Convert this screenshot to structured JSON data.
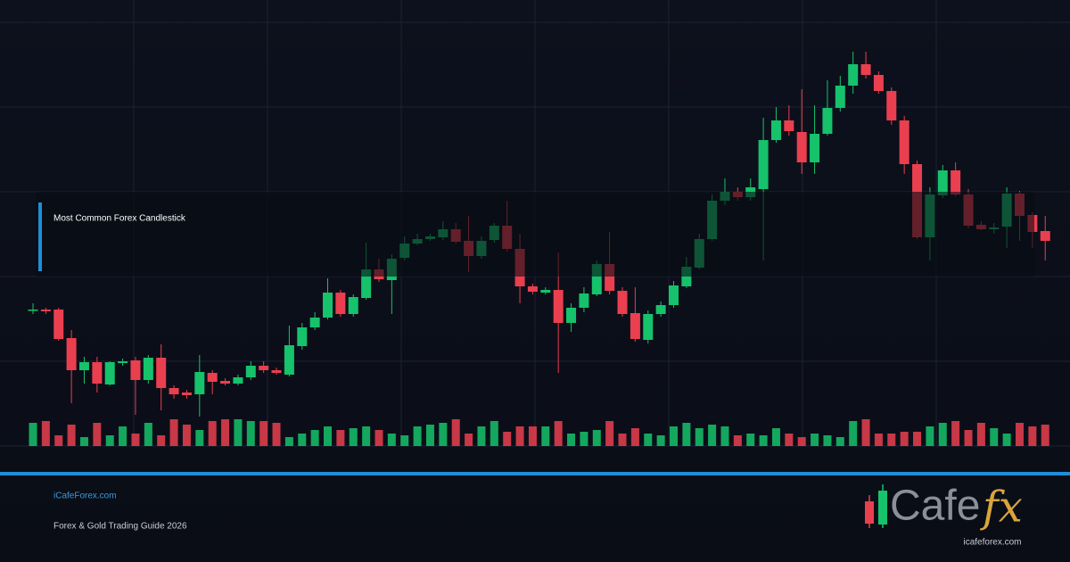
{
  "chart_data": {
    "type": "candlestick",
    "title": "Most Common Forex Candlestick",
    "ylim": [
      0,
      500
    ],
    "grid": true,
    "up_color": "#16c26b",
    "down_color": "#ea3f4f",
    "open": [
      153,
      153,
      153,
      121,
      85,
      94,
      69,
      93,
      96,
      74,
      99,
      65,
      60,
      58,
      82,
      73,
      70,
      77,
      90,
      85,
      80,
      112,
      133,
      144,
      172,
      148,
      166,
      198,
      186,
      211,
      227,
      232,
      234,
      243,
      230,
      213,
      231,
      247,
      221,
      179,
      172,
      175,
      138,
      155,
      170,
      204,
      174,
      149,
      119,
      148,
      158,
      179,
      200,
      232,
      275,
      285,
      279,
      288,
      343,
      365,
      352,
      318,
      350,
      379,
      404,
      428,
      416,
      398,
      365,
      316,
      234,
      281,
      309,
      282,
      248,
      243,
      246,
      283,
      259,
      241
    ],
    "high": [
      160,
      155,
      155,
      130,
      100,
      100,
      95,
      98,
      100,
      102,
      114,
      68,
      63,
      102,
      85,
      76,
      80,
      95,
      95,
      88,
      135,
      138,
      150,
      188,
      175,
      170,
      228,
      210,
      215,
      235,
      238,
      238,
      252,
      250,
      258,
      235,
      250,
      275,
      238,
      182,
      178,
      217,
      160,
      178,
      208,
      240,
      178,
      178,
      152,
      162,
      185,
      212,
      238,
      282,
      300,
      290,
      300,
      368,
      380,
      382,
      400,
      382,
      410,
      415,
      442,
      442,
      420,
      402,
      370,
      320,
      290,
      315,
      318,
      288,
      252,
      250,
      290,
      286,
      262,
      258
    ],
    "low": [
      148,
      148,
      118,
      48,
      70,
      60,
      68,
      90,
      35,
      70,
      40,
      53,
      53,
      33,
      58,
      68,
      68,
      74,
      82,
      80,
      78,
      108,
      130,
      142,
      145,
      145,
      164,
      184,
      148,
      208,
      225,
      230,
      231,
      227,
      195,
      210,
      228,
      218,
      160,
      170,
      170,
      82,
      128,
      150,
      168,
      170,
      145,
      117,
      115,
      145,
      155,
      177,
      198,
      230,
      270,
      275,
      275,
      208,
      340,
      348,
      305,
      305,
      348,
      375,
      395,
      412,
      395,
      360,
      305,
      232,
      208,
      278,
      280,
      244,
      242,
      238,
      222,
      230,
      222,
      208
    ],
    "close": [
      153,
      151,
      120,
      85,
      94,
      70,
      94,
      95,
      74,
      99,
      65,
      58,
      57,
      83,
      72,
      70,
      77,
      90,
      85,
      82,
      113,
      133,
      144,
      172,
      148,
      167,
      198,
      187,
      210,
      227,
      232,
      235,
      243,
      229,
      213,
      230,
      247,
      221,
      179,
      173,
      175,
      138,
      155,
      171,
      204,
      174,
      148,
      120,
      148,
      158,
      180,
      201,
      232,
      275,
      285,
      279,
      290,
      343,
      365,
      353,
      318,
      350,
      379,
      404,
      428,
      416,
      398,
      365,
      316,
      234,
      282,
      309,
      282,
      247,
      243,
      245,
      283,
      258,
      240,
      230
    ],
    "volume": [
      26,
      28,
      12,
      24,
      10,
      26,
      12,
      22,
      14,
      26,
      12,
      30,
      24,
      18,
      28,
      30,
      30,
      28,
      28,
      26,
      10,
      14,
      18,
      22,
      18,
      20,
      22,
      18,
      14,
      12,
      22,
      24,
      26,
      30,
      14,
      22,
      28,
      16,
      22,
      22,
      22,
      28,
      14,
      16,
      18,
      28,
      14,
      20,
      14,
      12,
      22,
      26,
      20,
      24,
      22,
      12,
      14,
      12,
      20,
      14,
      10,
      14,
      12,
      10,
      28,
      30,
      14,
      14,
      16,
      16,
      22,
      26,
      28,
      18,
      26,
      20,
      14,
      26,
      22,
      24
    ]
  },
  "footer": {
    "site": "iCafeForex.com",
    "subtitle": "Forex & Gold Trading Guide 2026"
  },
  "logo": {
    "text": "Cafe",
    "accent": "fx",
    "url": "icafeforex.com"
  }
}
